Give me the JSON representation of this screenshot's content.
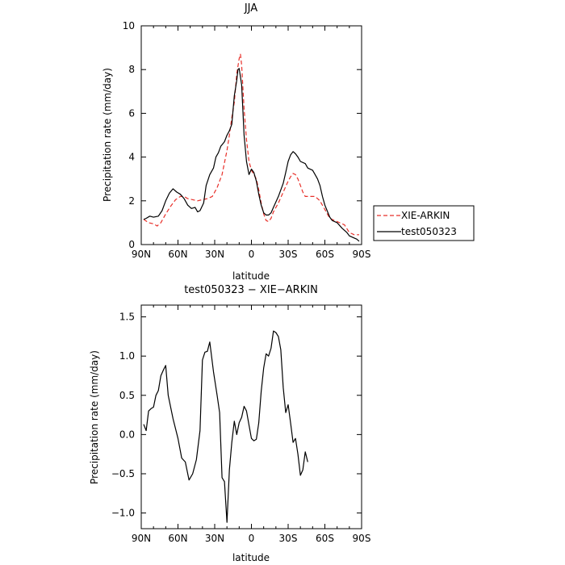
{
  "chart_data": [
    {
      "type": "line",
      "title": "JJA",
      "xlabel": "latitude",
      "ylabel": "Precipitation rate (mm/day)",
      "xlim": [
        90,
        -90
      ],
      "ylim": [
        0,
        10
      ],
      "x_ticks": [
        90,
        60,
        30,
        0,
        -30,
        -60,
        -90
      ],
      "x_tick_labels": [
        "90N",
        "60N",
        "30N",
        "0",
        "30S",
        "60S",
        "90S"
      ],
      "y_ticks": [
        0,
        2,
        4,
        6,
        8,
        10
      ],
      "y_tick_labels": [
        "0",
        "2",
        "4",
        "6",
        "8",
        "10"
      ],
      "legend_position": "right",
      "series": [
        {
          "name": "XIE-ARKIN",
          "color": "#e8302a",
          "dash": true,
          "points": [
            [
              88,
              1.15
            ],
            [
              84,
              1.0
            ],
            [
              80,
              0.95
            ],
            [
              77,
              0.85
            ],
            [
              74,
              1.0
            ],
            [
              70,
              1.4
            ],
            [
              66,
              1.75
            ],
            [
              62,
              2.05
            ],
            [
              58,
              2.2
            ],
            [
              55,
              2.2
            ],
            [
              52,
              2.1
            ],
            [
              48,
              2.05
            ],
            [
              44,
              2.0
            ],
            [
              40,
              2.05
            ],
            [
              36,
              2.1
            ],
            [
              32,
              2.2
            ],
            [
              28,
              2.6
            ],
            [
              24,
              3.2
            ],
            [
              20,
              4.3
            ],
            [
              18,
              5.0
            ],
            [
              16,
              5.8
            ],
            [
              14,
              6.5
            ],
            [
              12,
              7.8
            ],
            [
              10,
              8.5
            ],
            [
              9,
              8.7
            ],
            [
              8,
              8.2
            ],
            [
              6,
              6.2
            ],
            [
              4,
              4.8
            ],
            [
              2,
              3.8
            ],
            [
              0,
              3.4
            ],
            [
              -2,
              3.2
            ],
            [
              -4,
              3.0
            ],
            [
              -6,
              2.5
            ],
            [
              -8,
              1.9
            ],
            [
              -10,
              1.4
            ],
            [
              -12,
              1.1
            ],
            [
              -14,
              1.05
            ],
            [
              -16,
              1.2
            ],
            [
              -18,
              1.5
            ],
            [
              -22,
              1.9
            ],
            [
              -26,
              2.4
            ],
            [
              -30,
              2.9
            ],
            [
              -32,
              3.1
            ],
            [
              -34,
              3.25
            ],
            [
              -36,
              3.2
            ],
            [
              -38,
              3.0
            ],
            [
              -40,
              2.7
            ],
            [
              -42,
              2.4
            ],
            [
              -44,
              2.2
            ],
            [
              -48,
              2.2
            ],
            [
              -52,
              2.2
            ],
            [
              -54,
              2.1
            ],
            [
              -56,
              2.0
            ],
            [
              -60,
              1.6
            ],
            [
              -64,
              1.2
            ],
            [
              -68,
              1.1
            ],
            [
              -72,
              1.0
            ],
            [
              -76,
              0.9
            ],
            [
              -80,
              0.55
            ],
            [
              -84,
              0.45
            ],
            [
              -88,
              0.45
            ]
          ]
        },
        {
          "name": "test050323",
          "color": "#000000",
          "dash": false,
          "points": [
            [
              88,
              1.15
            ],
            [
              86,
              1.2
            ],
            [
              83,
              1.3
            ],
            [
              80,
              1.25
            ],
            [
              76,
              1.3
            ],
            [
              73,
              1.55
            ],
            [
              70,
              2.0
            ],
            [
              67,
              2.35
            ],
            [
              64,
              2.55
            ],
            [
              61,
              2.4
            ],
            [
              58,
              2.3
            ],
            [
              55,
              2.1
            ],
            [
              52,
              1.8
            ],
            [
              49,
              1.65
            ],
            [
              46,
              1.7
            ],
            [
              44,
              1.5
            ],
            [
              42,
              1.55
            ],
            [
              39,
              1.9
            ],
            [
              37,
              2.7
            ],
            [
              34,
              3.2
            ],
            [
              31,
              3.5
            ],
            [
              29,
              4.0
            ],
            [
              27,
              4.2
            ],
            [
              25,
              4.5
            ],
            [
              22,
              4.7
            ],
            [
              20,
              5.0
            ],
            [
              18,
              5.2
            ],
            [
              16,
              5.5
            ],
            [
              14,
              6.8
            ],
            [
              12,
              7.5
            ],
            [
              11,
              8.0
            ],
            [
              10,
              8.05
            ],
            [
              8,
              7.3
            ],
            [
              6,
              5.0
            ],
            [
              4,
              3.8
            ],
            [
              2,
              3.2
            ],
            [
              0,
              3.45
            ],
            [
              -2,
              3.3
            ],
            [
              -4,
              2.9
            ],
            [
              -6,
              2.3
            ],
            [
              -8,
              1.8
            ],
            [
              -10,
              1.45
            ],
            [
              -12,
              1.35
            ],
            [
              -14,
              1.35
            ],
            [
              -16,
              1.45
            ],
            [
              -18,
              1.7
            ],
            [
              -22,
              2.2
            ],
            [
              -26,
              2.8
            ],
            [
              -28,
              3.3
            ],
            [
              -30,
              3.8
            ],
            [
              -32,
              4.1
            ],
            [
              -34,
              4.25
            ],
            [
              -36,
              4.15
            ],
            [
              -38,
              4.0
            ],
            [
              -40,
              3.8
            ],
            [
              -44,
              3.7
            ],
            [
              -46,
              3.5
            ],
            [
              -50,
              3.4
            ],
            [
              -52,
              3.2
            ],
            [
              -54,
              3.0
            ],
            [
              -56,
              2.7
            ],
            [
              -58,
              2.2
            ],
            [
              -60,
              1.8
            ],
            [
              -64,
              1.25
            ],
            [
              -66,
              1.1
            ],
            [
              -70,
              1.0
            ],
            [
              -74,
              0.75
            ],
            [
              -78,
              0.55
            ],
            [
              -80,
              0.4
            ],
            [
              -84,
              0.3
            ],
            [
              -86,
              0.25
            ],
            [
              -88,
              0.15
            ]
          ]
        }
      ]
    },
    {
      "type": "line",
      "title": "test050323 − XIE−ARKIN",
      "xlabel": "latitude",
      "ylabel": "Precipitation rate (mm/day)",
      "xlim": [
        90,
        -90
      ],
      "ylim": [
        -1.2,
        1.65
      ],
      "x_ticks": [
        90,
        60,
        30,
        0,
        -30,
        -60,
        -90
      ],
      "x_tick_labels": [
        "90N",
        "60N",
        "30N",
        "0",
        "30S",
        "60S",
        "90S"
      ],
      "y_ticks": [
        1.5,
        1.0,
        0.5,
        0.0,
        -0.5,
        -1.0
      ],
      "y_tick_labels": [
        "1.5",
        "1.0",
        "0.5",
        "0.0",
        "−0.5",
        "−1.0"
      ],
      "series": [
        {
          "color": "#000000",
          "dash": false,
          "points": [
            [
              88,
              0.13
            ],
            [
              86,
              0.05
            ],
            [
              84,
              0.3
            ],
            [
              82,
              0.33
            ],
            [
              80,
              0.35
            ],
            [
              78,
              0.5
            ],
            [
              76,
              0.56
            ],
            [
              74,
              0.75
            ],
            [
              72,
              0.82
            ],
            [
              70,
              0.88
            ],
            [
              68,
              0.5
            ],
            [
              64,
              0.2
            ],
            [
              60,
              -0.05
            ],
            [
              57,
              -0.3
            ],
            [
              54,
              -0.35
            ],
            [
              51,
              -0.58
            ],
            [
              48,
              -0.5
            ],
            [
              45,
              -0.32
            ],
            [
              42,
              0.05
            ],
            [
              40,
              0.95
            ],
            [
              38,
              1.05
            ],
            [
              36,
              1.06
            ],
            [
              34,
              1.18
            ],
            [
              31,
              0.8
            ],
            [
              28,
              0.5
            ],
            [
              26,
              0.28
            ],
            [
              24,
              -0.55
            ],
            [
              22,
              -0.6
            ],
            [
              20,
              -1.12
            ],
            [
              18,
              -0.45
            ],
            [
              16,
              -0.1
            ],
            [
              14,
              0.17
            ],
            [
              12,
              0.0
            ],
            [
              10,
              0.15
            ],
            [
              8,
              0.22
            ],
            [
              6,
              0.36
            ],
            [
              4,
              0.3
            ],
            [
              2,
              0.12
            ],
            [
              0,
              -0.05
            ],
            [
              -2,
              -0.08
            ],
            [
              -4,
              -0.06
            ],
            [
              -6,
              0.15
            ],
            [
              -8,
              0.55
            ],
            [
              -10,
              0.85
            ],
            [
              -12,
              1.03
            ],
            [
              -14,
              1.0
            ],
            [
              -16,
              1.1
            ],
            [
              -18,
              1.32
            ],
            [
              -20,
              1.3
            ],
            [
              -22,
              1.25
            ],
            [
              -24,
              1.08
            ],
            [
              -26,
              0.6
            ],
            [
              -28,
              0.28
            ],
            [
              -30,
              0.38
            ],
            [
              -32,
              0.15
            ],
            [
              -34,
              -0.1
            ],
            [
              -36,
              -0.05
            ],
            [
              -38,
              -0.25
            ],
            [
              -40,
              -0.52
            ],
            [
              -42,
              -0.45
            ],
            [
              -44,
              -0.22
            ],
            [
              -46,
              -0.35
            ]
          ]
        }
      ]
    }
  ]
}
